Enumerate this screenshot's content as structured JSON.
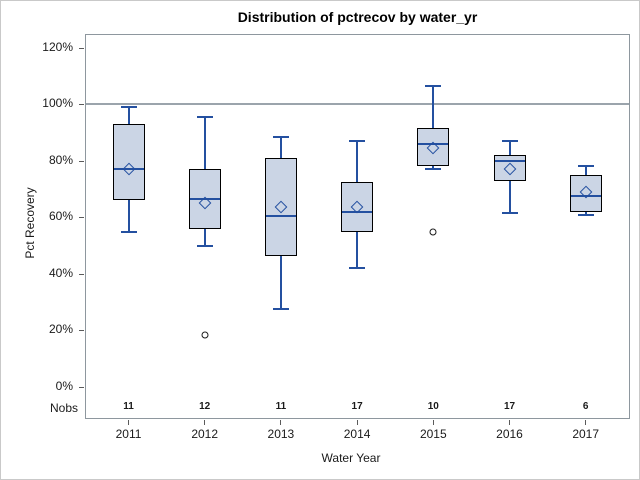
{
  "figure": {
    "border_color": "#c9c9c9",
    "background": "#ffffff"
  },
  "chart_data": {
    "type": "boxplot",
    "title": "Distribution of pctrecov by water_yr",
    "xlabel": "Water Year",
    "ylabel": "Pct Recovery",
    "y_axis": {
      "ticks": [
        "0%",
        "20%",
        "40%",
        "60%",
        "80%",
        "100%",
        "120%"
      ],
      "tick_values": [
        0,
        20,
        40,
        60,
        80,
        100,
        120
      ],
      "ylim": [
        -11,
        125
      ],
      "grid": false
    },
    "reference_line_value": 100,
    "categories": [
      "2011",
      "2012",
      "2013",
      "2014",
      "2015",
      "2016",
      "2017"
    ],
    "nobs_label": "Nobs",
    "nobs": [
      11,
      12,
      11,
      17,
      10,
      17,
      6
    ],
    "series": [
      {
        "year": "2011",
        "whisker_low": 55,
        "q1": 66,
        "median": 77,
        "q3": 93,
        "whisker_high": 99,
        "mean": 77,
        "outliers": []
      },
      {
        "year": "2012",
        "whisker_low": 50,
        "q1": 56,
        "median": 66.5,
        "q3": 77,
        "whisker_high": 95.5,
        "mean": 65,
        "outliers": [
          18.5
        ]
      },
      {
        "year": "2013",
        "whisker_low": 27.5,
        "q1": 46.5,
        "median": 60.5,
        "q3": 81,
        "whisker_high": 88.5,
        "mean": 63.5,
        "outliers": []
      },
      {
        "year": "2014",
        "whisker_low": 42,
        "q1": 55,
        "median": 62,
        "q3": 72.5,
        "whisker_high": 87,
        "mean": 63.5,
        "outliers": []
      },
      {
        "year": "2015",
        "whisker_low": 77,
        "q1": 78,
        "median": 86,
        "q3": 91.5,
        "whisker_high": 106.5,
        "mean": 84.5,
        "outliers": [
          55
        ]
      },
      {
        "year": "2016",
        "whisker_low": 61.5,
        "q1": 73,
        "median": 80,
        "q3": 82,
        "whisker_high": 87,
        "mean": 77,
        "outliers": []
      },
      {
        "year": "2017",
        "whisker_low": 61,
        "q1": 62,
        "median": 67.5,
        "q3": 75,
        "whisker_high": 78,
        "mean": 69,
        "outliers": []
      }
    ],
    "colors": {
      "box_fill": "#cbd5e5",
      "box_border": "#000000",
      "line_blue": "#2450a0",
      "reference_line": "#9ba4ac",
      "tick_color": "#5a5a5a",
      "outlier_stroke": "#1a1a1a"
    }
  }
}
